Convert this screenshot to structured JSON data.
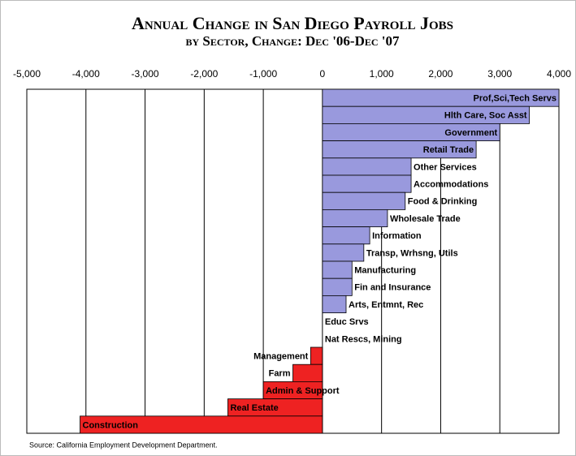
{
  "chart_data": {
    "type": "bar",
    "orientation": "horizontal",
    "title": "Annual Change in San Diego Payroll Jobs",
    "subtitle": "by Sector, Change: Dec '06-Dec '07",
    "categories": [
      "Prof,Sci,Tech Servs",
      "Hlth Care, Soc Asst",
      "Government",
      "Retail Trade",
      "Other Services",
      "Accommodations",
      "Food & Drinking",
      "Wholesale Trade",
      "Information",
      "Transp, Wrhsng, Utils",
      "Manufacturing",
      "Fin and Insurance",
      "Arts, Entmnt, Rec",
      "Educ Srvs",
      "Nat Rescs, Mining",
      "Management",
      "Farm",
      "Admin & Support",
      "Real Estate",
      "Construction"
    ],
    "values": [
      4000,
      3500,
      3000,
      2600,
      1500,
      1500,
      1400,
      1100,
      800,
      700,
      500,
      500,
      400,
      0,
      0,
      -200,
      -500,
      -1000,
      -1600,
      -4100
    ],
    "color": "#9999dd",
    "negative_color": "#ee2222",
    "xlim": [
      -5000,
      4000
    ],
    "xticks": [
      {
        "value": -5000,
        "label": "-5,000"
      },
      {
        "value": -4000,
        "label": "-4,000"
      },
      {
        "value": -3000,
        "label": "-3,000"
      },
      {
        "value": -2000,
        "label": "-2,000"
      },
      {
        "value": -1000,
        "label": "-1,000"
      },
      0,
      {
        "value": 1000,
        "label": "1,000"
      },
      {
        "value": 2000,
        "label": "2,000"
      },
      {
        "value": 3000,
        "label": "3,000"
      },
      {
        "value": 4000,
        "label": "4,000"
      }
    ],
    "grid": true,
    "source": "Source: California Employment Development Department."
  }
}
